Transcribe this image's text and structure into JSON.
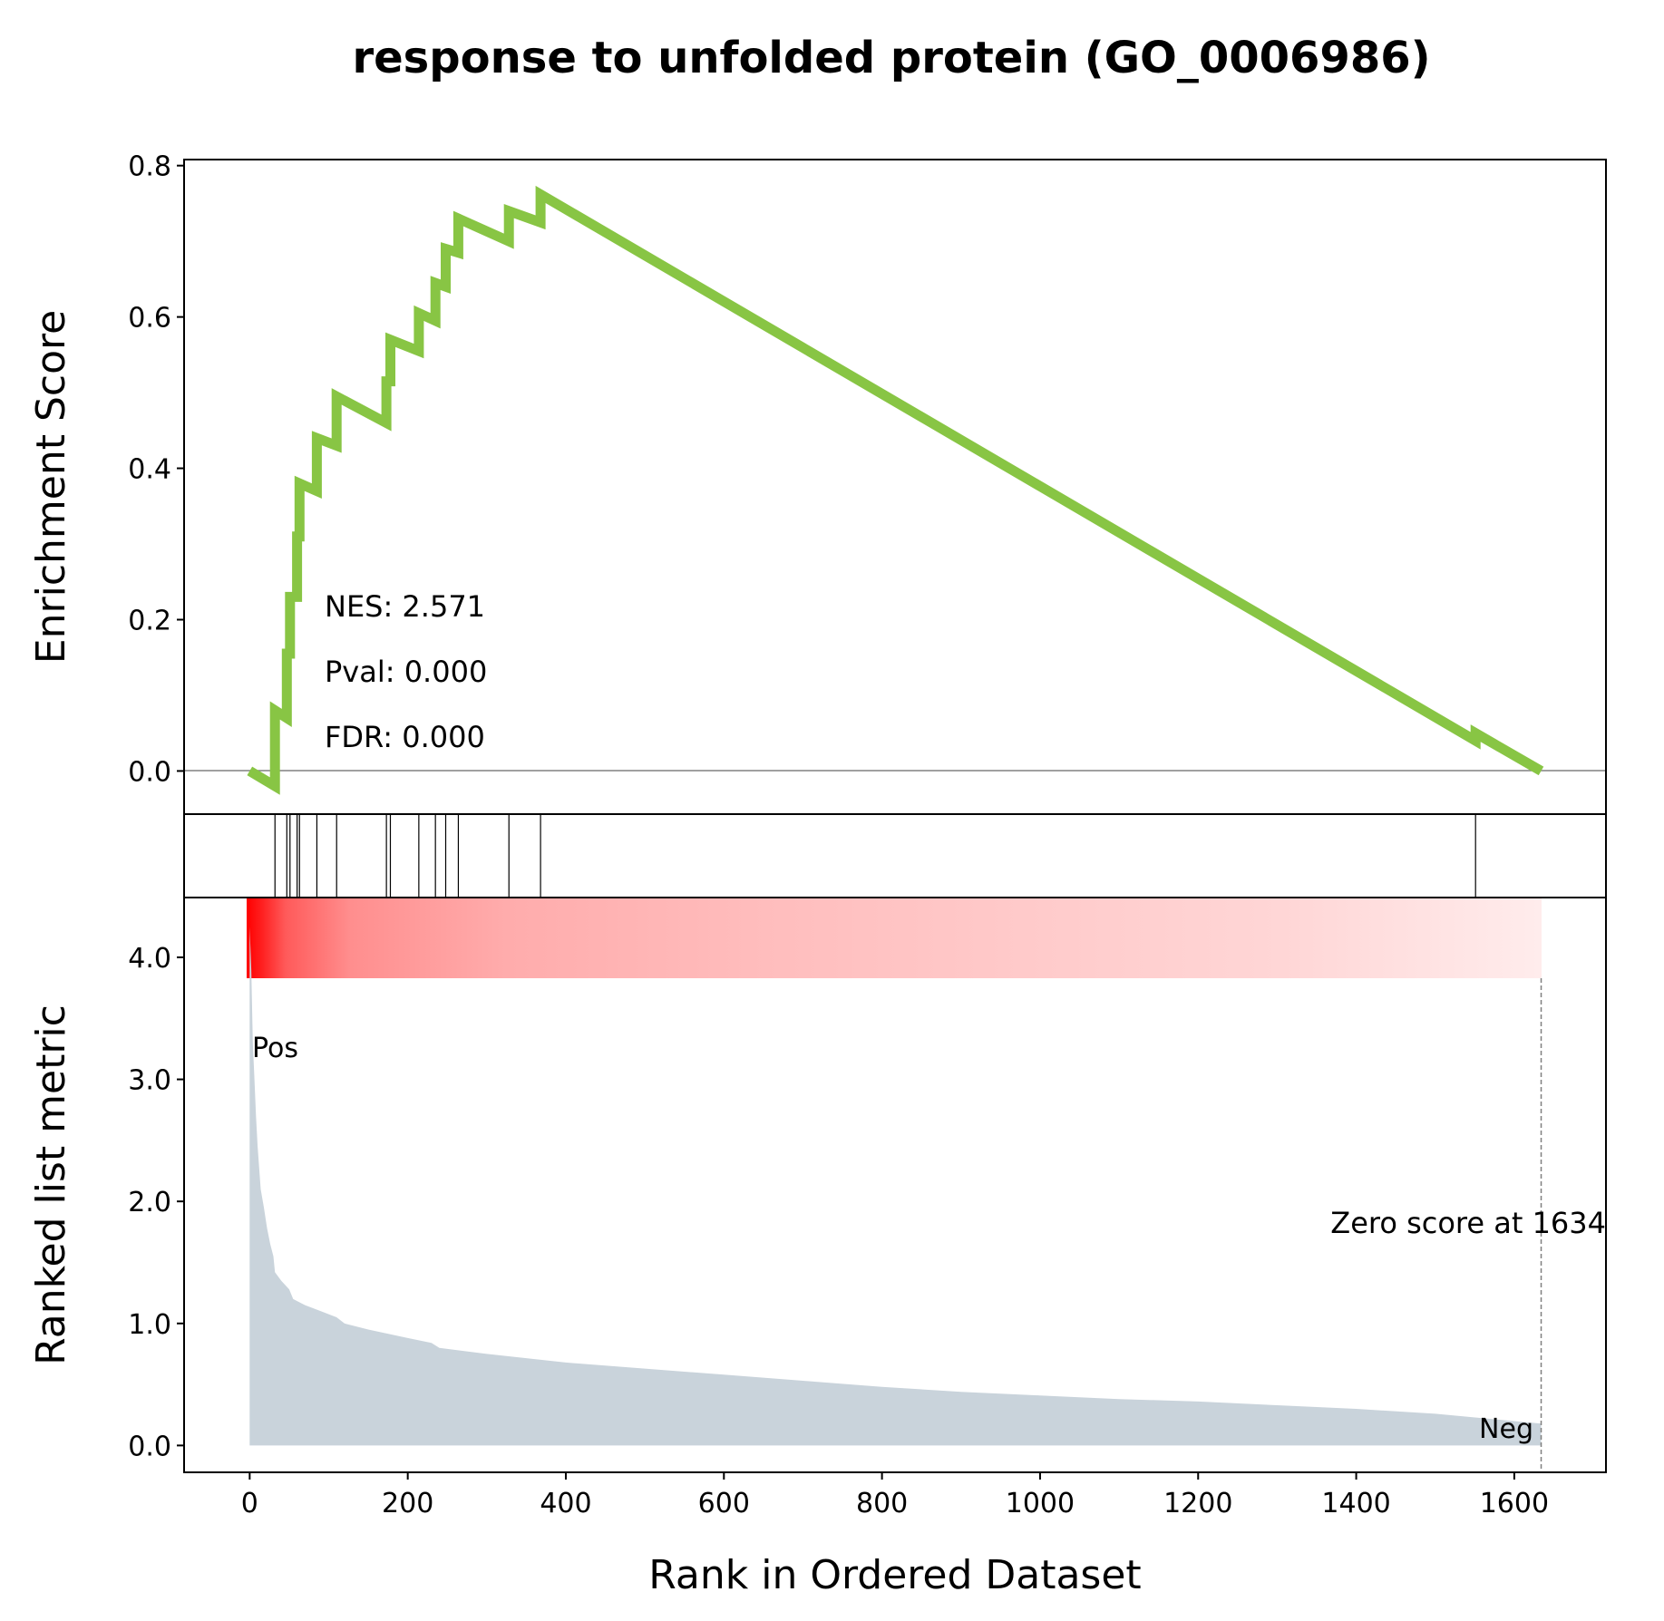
{
  "title": "response to unfolded protein (GO_0006986)",
  "stats": {
    "nes": "NES: 2.571",
    "pval": "Pval: 0.000",
    "fdr": "FDR: 0.000"
  },
  "labels": {
    "pos": "Pos",
    "neg": "Neg",
    "zero_score": "Zero score at 1634"
  },
  "colors": {
    "es_line": "#88C544",
    "metric_fill": "#C9D3DB",
    "pos": "#FF0000",
    "neg": "#0000FF"
  },
  "chart_data": [
    {
      "type": "line",
      "name": "running enrichment score",
      "ylabel": "Enrichment Score",
      "xlim": [
        -83,
        1716
      ],
      "ylim": [
        -0.057,
        0.808
      ],
      "yticks": [
        0.0,
        0.2,
        0.4,
        0.6,
        0.8
      ],
      "ytick_labels": [
        "0.0",
        "0.2",
        "0.4",
        "0.6",
        "0.8"
      ],
      "zero_line": true,
      "points": [
        [
          0,
          0.0
        ],
        [
          32,
          -0.02
        ],
        [
          32,
          0.08
        ],
        [
          47,
          0.07
        ],
        [
          47,
          0.155
        ],
        [
          51,
          0.155
        ],
        [
          51,
          0.23
        ],
        [
          60,
          0.23
        ],
        [
          60,
          0.31
        ],
        [
          63,
          0.31
        ],
        [
          63,
          0.38
        ],
        [
          85,
          0.37
        ],
        [
          85,
          0.44
        ],
        [
          110,
          0.43
        ],
        [
          110,
          0.495
        ],
        [
          173,
          0.46
        ],
        [
          173,
          0.515
        ],
        [
          178,
          0.515
        ],
        [
          178,
          0.57
        ],
        [
          214,
          0.555
        ],
        [
          214,
          0.605
        ],
        [
          235,
          0.595
        ],
        [
          235,
          0.645
        ],
        [
          248,
          0.64
        ],
        [
          248,
          0.69
        ],
        [
          264,
          0.685
        ],
        [
          264,
          0.73
        ],
        [
          328,
          0.7
        ],
        [
          328,
          0.74
        ],
        [
          368,
          0.725
        ],
        [
          368,
          0.762
        ],
        [
          1551,
          0.04
        ],
        [
          1551,
          0.05
        ],
        [
          1634,
          0.0
        ]
      ]
    },
    {
      "type": "scatter",
      "name": "gene set hits",
      "hits": [
        32,
        47,
        51,
        60,
        63,
        85,
        110,
        173,
        178,
        214,
        235,
        248,
        264,
        328,
        368,
        1551
      ]
    },
    {
      "type": "area",
      "name": "ranked list metric",
      "xlabel": "Rank in Ordered Dataset",
      "ylabel": "Ranked list metric",
      "xlim": [
        -83,
        1716
      ],
      "ylim": [
        -0.22,
        4.49
      ],
      "xticks": [
        0,
        200,
        400,
        600,
        800,
        1000,
        1200,
        1400,
        1600
      ],
      "xtick_labels": [
        "0",
        "200",
        "400",
        "600",
        "800",
        "1000",
        "1200",
        "1400",
        "1600"
      ],
      "yticks": [
        0.0,
        1.0,
        2.0,
        3.0,
        4.0
      ],
      "ytick_labels": [
        "0.0",
        "1.0",
        "2.0",
        "3.0",
        "4.0"
      ],
      "zero_score_rank": 1634,
      "points": [
        [
          0,
          4.25
        ],
        [
          2,
          3.9
        ],
        [
          4,
          3.3
        ],
        [
          6,
          3.0
        ],
        [
          8,
          2.7
        ],
        [
          10,
          2.45
        ],
        [
          14,
          2.1
        ],
        [
          18,
          1.95
        ],
        [
          22,
          1.78
        ],
        [
          26,
          1.65
        ],
        [
          30,
          1.55
        ],
        [
          32,
          1.42
        ],
        [
          40,
          1.35
        ],
        [
          50,
          1.28
        ],
        [
          55,
          1.2
        ],
        [
          70,
          1.15
        ],
        [
          90,
          1.1
        ],
        [
          110,
          1.05
        ],
        [
          120,
          1.0
        ],
        [
          150,
          0.95
        ],
        [
          200,
          0.88
        ],
        [
          230,
          0.84
        ],
        [
          240,
          0.8
        ],
        [
          300,
          0.75
        ],
        [
          400,
          0.68
        ],
        [
          500,
          0.63
        ],
        [
          600,
          0.58
        ],
        [
          700,
          0.53
        ],
        [
          800,
          0.48
        ],
        [
          900,
          0.44
        ],
        [
          1000,
          0.41
        ],
        [
          1100,
          0.38
        ],
        [
          1200,
          0.36
        ],
        [
          1300,
          0.33
        ],
        [
          1400,
          0.3
        ],
        [
          1500,
          0.26
        ],
        [
          1600,
          0.2
        ],
        [
          1634,
          0.18
        ]
      ]
    }
  ]
}
